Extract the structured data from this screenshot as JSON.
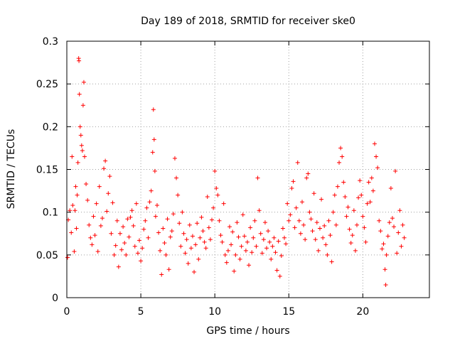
{
  "chart_data": {
    "type": "scatter",
    "title": "Day 189 of 2018, SRMTID for receiver ske0",
    "xlabel": "GPS time / hours",
    "ylabel": "SRMTID / TECUs",
    "xlim": [
      0,
      24.5
    ],
    "ylim": [
      0,
      0.3
    ],
    "x_ticks": [
      0,
      5,
      10,
      15,
      20
    ],
    "x_tick_labels": [
      "0",
      "5",
      "10",
      "15",
      "20"
    ],
    "y_ticks": [
      0,
      0.05,
      0.1,
      0.15,
      0.2,
      0.25,
      0.3
    ],
    "y_tick_labels": [
      "0",
      "0.05",
      "0.1",
      "0.15",
      "0.2",
      "0.25",
      "0.3"
    ],
    "grid": true,
    "marker": "+",
    "series": [
      {
        "name": "SRMTID",
        "color": "#ff0000",
        "points": [
          [
            0.05,
            0.047
          ],
          [
            0.1,
            0.091
          ],
          [
            0.2,
            0.102
          ],
          [
            0.3,
            0.076
          ],
          [
            0.35,
            0.165
          ],
          [
            0.4,
            0.108
          ],
          [
            0.5,
            0.054
          ],
          [
            0.55,
            0.102
          ],
          [
            0.6,
            0.13
          ],
          [
            0.65,
            0.081
          ],
          [
            0.7,
            0.12
          ],
          [
            0.75,
            0.158
          ],
          [
            0.8,
            0.28
          ],
          [
            0.82,
            0.277
          ],
          [
            0.85,
            0.238
          ],
          [
            0.9,
            0.2
          ],
          [
            0.95,
            0.19
          ],
          [
            1.0,
            0.178
          ],
          [
            1.05,
            0.172
          ],
          [
            1.1,
            0.225
          ],
          [
            1.15,
            0.252
          ],
          [
            1.2,
            0.165
          ],
          [
            1.3,
            0.133
          ],
          [
            1.4,
            0.114
          ],
          [
            1.5,
            0.085
          ],
          [
            1.6,
            0.07
          ],
          [
            1.7,
            0.062
          ],
          [
            1.8,
            0.095
          ],
          [
            1.9,
            0.073
          ],
          [
            2.0,
            0.11
          ],
          [
            2.1,
            0.054
          ],
          [
            2.2,
            0.13
          ],
          [
            2.3,
            0.084
          ],
          [
            2.4,
            0.093
          ],
          [
            2.5,
            0.151
          ],
          [
            2.6,
            0.16
          ],
          [
            2.7,
            0.101
          ],
          [
            2.8,
            0.122
          ],
          [
            2.9,
            0.142
          ],
          [
            3.0,
            0.075
          ],
          [
            3.1,
            0.111
          ],
          [
            3.2,
            0.05
          ],
          [
            3.3,
            0.061
          ],
          [
            3.4,
            0.09
          ],
          [
            3.5,
            0.036
          ],
          [
            3.6,
            0.075
          ],
          [
            3.7,
            0.056
          ],
          [
            3.8,
            0.083
          ],
          [
            3.9,
            0.064
          ],
          [
            4.0,
            0.05
          ],
          [
            4.1,
            0.092
          ],
          [
            4.2,
            0.071
          ],
          [
            4.3,
            0.094
          ],
          [
            4.4,
            0.102
          ],
          [
            4.5,
            0.084
          ],
          [
            4.6,
            0.06
          ],
          [
            4.7,
            0.11
          ],
          [
            4.8,
            0.052
          ],
          [
            4.9,
            0.067
          ],
          [
            5.0,
            0.043
          ],
          [
            5.1,
            0.058
          ],
          [
            5.2,
            0.08
          ],
          [
            5.3,
            0.09
          ],
          [
            5.4,
            0.105
          ],
          [
            5.5,
            0.07
          ],
          [
            5.6,
            0.112
          ],
          [
            5.7,
            0.125
          ],
          [
            5.8,
            0.17
          ],
          [
            5.85,
            0.22
          ],
          [
            5.9,
            0.185
          ],
          [
            5.95,
            0.148
          ],
          [
            6.0,
            0.095
          ],
          [
            6.1,
            0.108
          ],
          [
            6.2,
            0.076
          ],
          [
            6.3,
            0.055
          ],
          [
            6.4,
            0.027
          ],
          [
            6.5,
            0.081
          ],
          [
            6.6,
            0.064
          ],
          [
            6.7,
            0.05
          ],
          [
            6.8,
            0.092
          ],
          [
            6.9,
            0.033
          ],
          [
            7.0,
            0.071
          ],
          [
            7.1,
            0.078
          ],
          [
            7.2,
            0.098
          ],
          [
            7.3,
            0.163
          ],
          [
            7.4,
            0.14
          ],
          [
            7.5,
            0.12
          ],
          [
            7.6,
            0.087
          ],
          [
            7.7,
            0.06
          ],
          [
            7.8,
            0.1
          ],
          [
            7.9,
            0.075
          ],
          [
            8.0,
            0.052
          ],
          [
            8.1,
            0.068
          ],
          [
            8.2,
            0.04
          ],
          [
            8.3,
            0.085
          ],
          [
            8.4,
            0.058
          ],
          [
            8.5,
            0.072
          ],
          [
            8.6,
            0.03
          ],
          [
            8.7,
            0.062
          ],
          [
            8.8,
            0.087
          ],
          [
            8.9,
            0.045
          ],
          [
            9.0,
            0.07
          ],
          [
            9.1,
            0.094
          ],
          [
            9.2,
            0.078
          ],
          [
            9.3,
            0.065
          ],
          [
            9.4,
            0.058
          ],
          [
            9.5,
            0.118
          ],
          [
            9.6,
            0.082
          ],
          [
            9.7,
            0.068
          ],
          [
            9.8,
            0.091
          ],
          [
            9.9,
            0.105
          ],
          [
            10.0,
            0.148
          ],
          [
            10.1,
            0.128
          ],
          [
            10.2,
            0.12
          ],
          [
            10.3,
            0.09
          ],
          [
            10.4,
            0.073
          ],
          [
            10.5,
            0.065
          ],
          [
            10.6,
            0.11
          ],
          [
            10.7,
            0.05
          ],
          [
            10.8,
            0.041
          ],
          [
            10.9,
            0.055
          ],
          [
            11.0,
            0.083
          ],
          [
            11.1,
            0.062
          ],
          [
            11.2,
            0.077
          ],
          [
            11.3,
            0.031
          ],
          [
            11.4,
            0.05
          ],
          [
            11.5,
            0.088
          ],
          [
            11.6,
            0.071
          ],
          [
            11.7,
            0.045
          ],
          [
            11.8,
            0.06
          ],
          [
            11.9,
            0.097
          ],
          [
            12.0,
            0.072
          ],
          [
            12.1,
            0.055
          ],
          [
            12.2,
            0.065
          ],
          [
            12.3,
            0.038
          ],
          [
            12.4,
            0.082
          ],
          [
            12.5,
            0.053
          ],
          [
            12.6,
            0.07
          ],
          [
            12.7,
            0.09
          ],
          [
            12.8,
            0.06
          ],
          [
            12.9,
            0.14
          ],
          [
            13.0,
            0.102
          ],
          [
            13.1,
            0.075
          ],
          [
            13.2,
            0.052
          ],
          [
            13.3,
            0.068
          ],
          [
            13.4,
            0.088
          ],
          [
            13.5,
            0.058
          ],
          [
            13.6,
            0.078
          ],
          [
            13.7,
            0.065
          ],
          [
            13.8,
            0.045
          ],
          [
            13.9,
            0.06
          ],
          [
            14.0,
            0.07
          ],
          [
            14.1,
            0.053
          ],
          [
            14.2,
            0.032
          ],
          [
            14.3,
            0.066
          ],
          [
            14.4,
            0.025
          ],
          [
            14.5,
            0.049
          ],
          [
            14.6,
            0.081
          ],
          [
            14.7,
            0.07
          ],
          [
            14.8,
            0.063
          ],
          [
            14.9,
            0.11
          ],
          [
            15.0,
            0.09
          ],
          [
            15.1,
            0.097
          ],
          [
            15.2,
            0.128
          ],
          [
            15.3,
            0.136
          ],
          [
            15.4,
            0.082
          ],
          [
            15.5,
            0.105
          ],
          [
            15.6,
            0.158
          ],
          [
            15.7,
            0.09
          ],
          [
            15.8,
            0.075
          ],
          [
            15.9,
            0.112
          ],
          [
            16.0,
            0.085
          ],
          [
            16.1,
            0.068
          ],
          [
            16.2,
            0.14
          ],
          [
            16.3,
            0.145
          ],
          [
            16.4,
            0.1
          ],
          [
            16.5,
            0.092
          ],
          [
            16.6,
            0.078
          ],
          [
            16.7,
            0.122
          ],
          [
            16.8,
            0.068
          ],
          [
            16.9,
            0.088
          ],
          [
            17.0,
            0.055
          ],
          [
            17.1,
            0.081
          ],
          [
            17.2,
            0.115
          ],
          [
            17.3,
            0.07
          ],
          [
            17.4,
            0.084
          ],
          [
            17.5,
            0.062
          ],
          [
            17.6,
            0.05
          ],
          [
            17.7,
            0.09
          ],
          [
            17.8,
            0.073
          ],
          [
            17.9,
            0.042
          ],
          [
            18.0,
            0.1
          ],
          [
            18.1,
            0.12
          ],
          [
            18.2,
            0.085
          ],
          [
            18.3,
            0.13
          ],
          [
            18.4,
            0.158
          ],
          [
            18.5,
            0.175
          ],
          [
            18.6,
            0.165
          ],
          [
            18.7,
            0.135
          ],
          [
            18.8,
            0.118
          ],
          [
            18.9,
            0.095
          ],
          [
            19.0,
            0.106
          ],
          [
            19.1,
            0.08
          ],
          [
            19.2,
            0.064
          ],
          [
            19.3,
            0.073
          ],
          [
            19.4,
            0.102
          ],
          [
            19.5,
            0.055
          ],
          [
            19.6,
            0.085
          ],
          [
            19.7,
            0.117
          ],
          [
            19.8,
            0.137
          ],
          [
            19.9,
            0.12
          ],
          [
            20.0,
            0.095
          ],
          [
            20.1,
            0.082
          ],
          [
            20.2,
            0.065
          ],
          [
            20.3,
            0.11
          ],
          [
            20.4,
            0.135
          ],
          [
            20.5,
            0.112
          ],
          [
            20.6,
            0.14
          ],
          [
            20.7,
            0.125
          ],
          [
            20.8,
            0.18
          ],
          [
            20.9,
            0.165
          ],
          [
            21.0,
            0.152
          ],
          [
            21.1,
            0.09
          ],
          [
            21.2,
            0.078
          ],
          [
            21.3,
            0.057
          ],
          [
            21.4,
            0.063
          ],
          [
            21.5,
            0.033
          ],
          [
            21.55,
            0.015
          ],
          [
            21.6,
            0.05
          ],
          [
            21.7,
            0.072
          ],
          [
            21.8,
            0.088
          ],
          [
            21.9,
            0.128
          ],
          [
            22.0,
            0.093
          ],
          [
            22.1,
            0.083
          ],
          [
            22.2,
            0.148
          ],
          [
            22.3,
            0.052
          ],
          [
            22.4,
            0.076
          ],
          [
            22.5,
            0.102
          ],
          [
            22.6,
            0.06
          ],
          [
            22.7,
            0.085
          ],
          [
            22.8,
            0.07
          ]
        ]
      }
    ]
  }
}
